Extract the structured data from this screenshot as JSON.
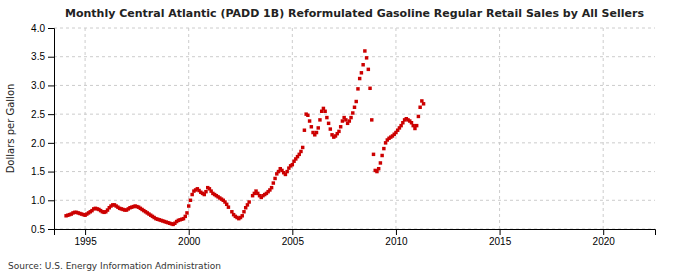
{
  "chart_data": {
    "type": "scatter",
    "title": "Monthly Central Atlantic (PADD 1B) Reformulated Gasoline Regular Retail Sales by All Sellers",
    "ylabel": "Dollars per Gallon",
    "annotations": [
      "Source: U.S. Energy Information Administration"
    ],
    "color": "#cc0000",
    "marker": "square",
    "grid": true,
    "xlim": [
      1993.5,
      2022.5
    ],
    "ylim": [
      0.5,
      4.0
    ],
    "xticks": [
      1995,
      2000,
      2005,
      2010,
      2015,
      2020
    ],
    "yticks": [
      0.5,
      {
        "value": 1.0,
        "label": "1.0"
      },
      1.5,
      {
        "value": 2.0,
        "label": "2.0"
      },
      2.5,
      {
        "value": 3.0,
        "label": "3.0"
      },
      3.5,
      {
        "value": 4.0,
        "label": "4.0"
      }
    ],
    "x": [
      1994.083,
      1994.167,
      1994.25,
      1994.333,
      1994.417,
      1994.5,
      1994.583,
      1994.667,
      1994.75,
      1994.833,
      1994.917,
      1995.0,
      1995.083,
      1995.167,
      1995.25,
      1995.333,
      1995.417,
      1995.5,
      1995.583,
      1995.667,
      1995.75,
      1995.833,
      1995.917,
      1996.0,
      1996.083,
      1996.167,
      1996.25,
      1996.333,
      1996.417,
      1996.5,
      1996.583,
      1996.667,
      1996.75,
      1996.833,
      1996.917,
      1997.0,
      1997.083,
      1997.167,
      1997.25,
      1997.333,
      1997.417,
      1997.5,
      1997.583,
      1997.667,
      1997.75,
      1997.833,
      1997.917,
      1998.0,
      1998.083,
      1998.167,
      1998.25,
      1998.333,
      1998.417,
      1998.5,
      1998.583,
      1998.667,
      1998.75,
      1998.833,
      1998.917,
      1999.0,
      1999.083,
      1999.167,
      1999.25,
      1999.333,
      1999.417,
      1999.5,
      1999.583,
      1999.667,
      1999.75,
      1999.833,
      1999.917,
      2000.0,
      2000.083,
      2000.167,
      2000.25,
      2000.333,
      2000.417,
      2000.5,
      2000.583,
      2000.667,
      2000.75,
      2000.833,
      2000.917,
      2001.0,
      2001.083,
      2001.167,
      2001.25,
      2001.333,
      2001.417,
      2001.5,
      2001.583,
      2001.667,
      2001.75,
      2001.833,
      2001.917,
      2002.083,
      2002.167,
      2002.25,
      2002.333,
      2002.417,
      2002.5,
      2002.583,
      2002.667,
      2002.75,
      2002.833,
      2002.917,
      2003.083,
      2003.167,
      2003.25,
      2003.333,
      2003.417,
      2003.5,
      2003.583,
      2003.667,
      2003.75,
      2003.833,
      2003.917,
      2004.0,
      2004.083,
      2004.167,
      2004.25,
      2004.333,
      2004.417,
      2004.5,
      2004.583,
      2004.667,
      2004.75,
      2004.833,
      2004.917,
      2005.0,
      2005.083,
      2005.167,
      2005.25,
      2005.333,
      2005.417,
      2005.5,
      2005.583,
      2005.667,
      2005.75,
      2005.833,
      2005.917,
      2006.0,
      2006.083,
      2006.167,
      2006.25,
      2006.333,
      2006.417,
      2006.5,
      2006.583,
      2006.667,
      2006.75,
      2006.833,
      2006.917,
      2007.0,
      2007.083,
      2007.167,
      2007.25,
      2007.333,
      2007.417,
      2007.5,
      2007.583,
      2007.667,
      2007.75,
      2007.833,
      2007.917,
      2008.0,
      2008.083,
      2008.167,
      2008.25,
      2008.333,
      2008.417,
      2008.5,
      2008.583,
      2008.667,
      2008.75,
      2008.833,
      2008.917,
      2009.0,
      2009.083,
      2009.167,
      2009.25,
      2009.333,
      2009.417,
      2009.5,
      2009.583,
      2009.667,
      2009.75,
      2009.833,
      2009.917,
      2010.0,
      2010.083,
      2010.167,
      2010.25,
      2010.333,
      2010.417,
      2010.5,
      2010.583,
      2010.667,
      2010.75,
      2010.833,
      2010.917,
      2011.0,
      2011.083,
      2011.167,
      2011.25,
      2011.333
    ],
    "values": [
      0.73,
      0.74,
      0.75,
      0.76,
      0.78,
      0.79,
      0.79,
      0.78,
      0.77,
      0.76,
      0.75,
      0.74,
      0.76,
      0.78,
      0.8,
      0.82,
      0.85,
      0.86,
      0.85,
      0.84,
      0.82,
      0.8,
      0.79,
      0.8,
      0.83,
      0.87,
      0.9,
      0.92,
      0.92,
      0.9,
      0.88,
      0.86,
      0.85,
      0.84,
      0.83,
      0.83,
      0.85,
      0.87,
      0.88,
      0.89,
      0.9,
      0.89,
      0.88,
      0.86,
      0.84,
      0.82,
      0.8,
      0.78,
      0.76,
      0.74,
      0.72,
      0.7,
      0.68,
      0.67,
      0.66,
      0.65,
      0.64,
      0.63,
      0.62,
      0.61,
      0.6,
      0.59,
      0.58,
      0.6,
      0.63,
      0.65,
      0.66,
      0.67,
      0.68,
      0.72,
      0.78,
      0.9,
      1.0,
      1.1,
      1.16,
      1.18,
      1.2,
      1.17,
      1.14,
      1.12,
      1.1,
      1.15,
      1.22,
      1.2,
      1.16,
      1.12,
      1.1,
      1.08,
      1.06,
      1.04,
      1.02,
      1.0,
      0.97,
      0.93,
      0.88,
      0.8,
      0.75,
      0.72,
      0.7,
      0.68,
      0.7,
      0.73,
      0.8,
      0.87,
      0.92,
      0.97,
      1.08,
      1.12,
      1.16,
      1.12,
      1.08,
      1.05,
      1.08,
      1.1,
      1.12,
      1.15,
      1.18,
      1.22,
      1.3,
      1.38,
      1.46,
      1.5,
      1.55,
      1.52,
      1.48,
      1.45,
      1.5,
      1.56,
      1.6,
      1.62,
      1.68,
      1.72,
      1.76,
      1.8,
      1.85,
      1.92,
      2.22,
      2.5,
      2.48,
      2.38,
      2.28,
      2.18,
      2.14,
      2.18,
      2.26,
      2.4,
      2.55,
      2.6,
      2.55,
      2.44,
      2.34,
      2.24,
      2.14,
      2.1,
      2.12,
      2.16,
      2.2,
      2.28,
      2.38,
      2.44,
      2.4,
      2.34,
      2.38,
      2.44,
      2.52,
      2.62,
      2.72,
      2.94,
      3.12,
      3.22,
      3.36,
      3.6,
      3.48,
      3.28,
      2.95,
      2.4,
      1.8,
      1.52,
      1.5,
      1.55,
      1.65,
      1.78,
      1.9,
      2.0,
      2.05,
      2.08,
      2.1,
      2.12,
      2.15,
      2.18,
      2.22,
      2.26,
      2.3,
      2.35,
      2.4,
      2.42,
      2.4,
      2.38,
      2.35,
      2.3,
      2.25,
      2.3,
      2.46,
      2.62,
      2.73,
      2.68
    ]
  }
}
